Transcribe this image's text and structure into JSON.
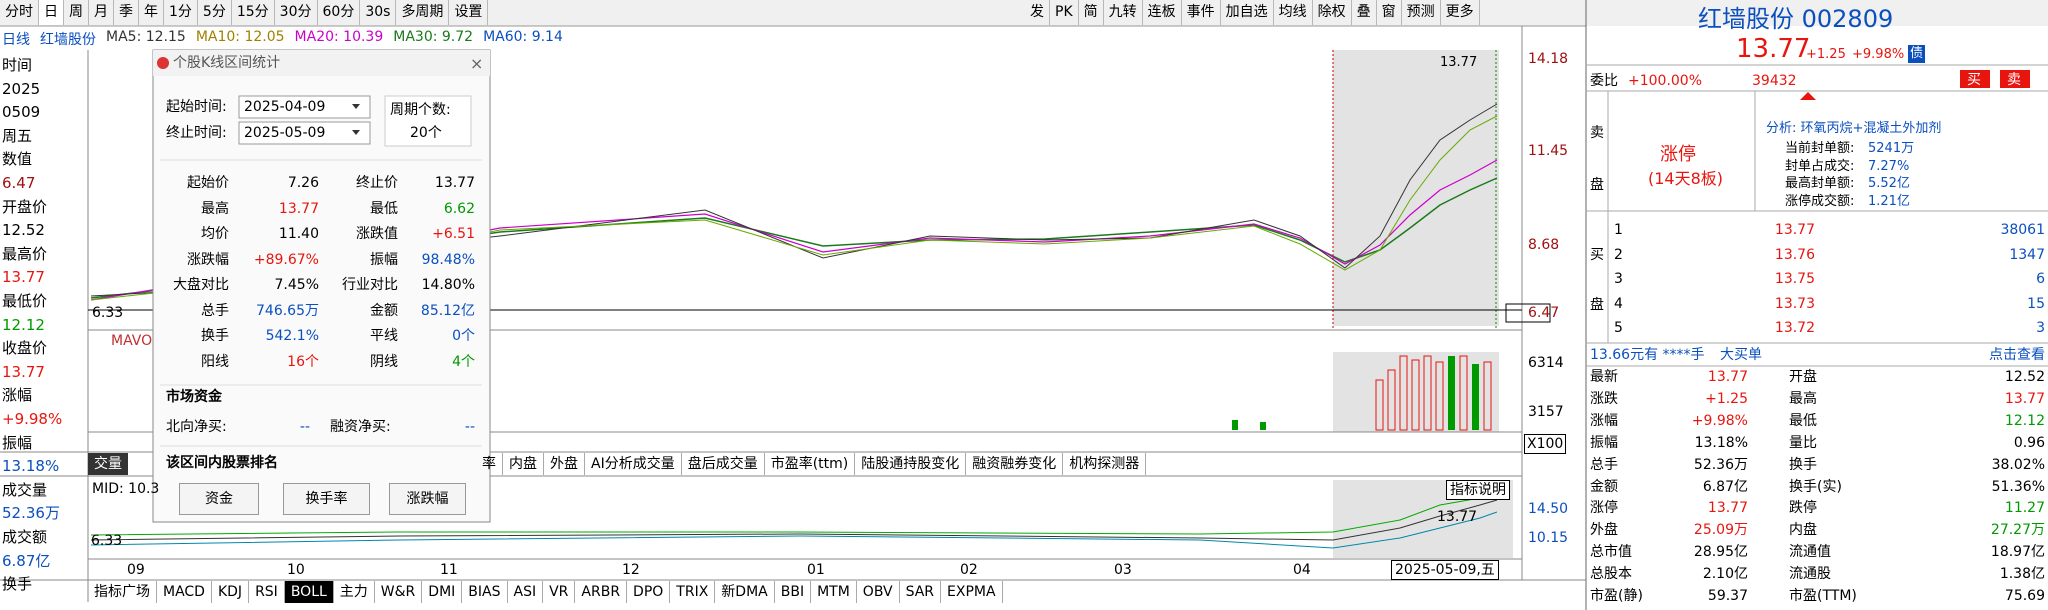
{
  "toolbar": {
    "left": [
      "分时",
      "日",
      "周",
      "月",
      "季",
      "年",
      "1分",
      "5分",
      "15分",
      "30分",
      "60分",
      "30s",
      "多周期",
      "设置"
    ],
    "right": [
      "发",
      "PK",
      "简",
      "九转",
      "连板",
      "事件",
      "加自选",
      "均线",
      "除权",
      "叠",
      "窗",
      "预测",
      "更多"
    ]
  },
  "indicator_line": [
    {
      "text": "日线",
      "color": "#0b4fbf"
    },
    {
      "text": "红墙股份",
      "color": "#0b4fbf"
    },
    {
      "text": "MA5: 12.15",
      "color": "#333333"
    },
    {
      "text": "MA10: 12.05",
      "color": "#a08000"
    },
    {
      "text": "MA20: 10.39",
      "color": "#cc00cc"
    },
    {
      "text": "MA30: 9.72",
      "color": "#1a7a1a"
    },
    {
      "text": "MA60: 9.14",
      "color": "#0b4fbf"
    }
  ],
  "left_info": [
    {
      "text": "时间",
      "color": "#000000"
    },
    {
      "text": "2025",
      "color": "#000000"
    },
    {
      "text": "0509",
      "color": "#000000"
    },
    {
      "text": "周五",
      "color": "#000000"
    },
    {
      "text": "数值",
      "color": "#000000"
    },
    {
      "text": "6.47",
      "color": "#a01010"
    },
    {
      "text": "开盘价",
      "color": "#000000"
    },
    {
      "text": "12.52",
      "color": "#000000"
    },
    {
      "text": "最高价",
      "color": "#000000"
    },
    {
      "text": "13.77",
      "color": "#e8150f"
    },
    {
      "text": "最低价",
      "color": "#000000"
    },
    {
      "text": "12.12",
      "color": "#009900"
    },
    {
      "text": "收盘价",
      "color": "#000000"
    },
    {
      "text": "13.77",
      "color": "#e8150f"
    },
    {
      "text": "涨幅",
      "color": "#000000"
    },
    {
      "text": "+9.98%",
      "color": "#e8150f"
    },
    {
      "text": "振幅",
      "color": "#000000"
    },
    {
      "text": "13.18%",
      "color": "#0b4fbf"
    },
    {
      "text": "成交量",
      "color": "#000000"
    },
    {
      "text": "52.36万",
      "color": "#0b4fbf"
    },
    {
      "text": "成交额",
      "color": "#000000"
    },
    {
      "text": "6.87亿",
      "color": "#0b4fbf"
    },
    {
      "text": "换手",
      "color": "#000000"
    }
  ],
  "price_axis": [
    "14.18",
    "11.45",
    "8.68",
    "6.47"
  ],
  "price_axis_left": "6.33",
  "chart_price_label": "13.77",
  "volume": {
    "label": "MAVO",
    "axis": [
      "6314",
      "3157"
    ],
    "unit": "X100"
  },
  "tabs": {
    "active": "交量",
    "items": [
      "率",
      "内盘",
      "外盘",
      "AI分析成交量",
      "盘后成交量",
      "市盈率(ttm)",
      "陆股通持股变化",
      "融资融券变化",
      "机构探测器"
    ]
  },
  "lower": {
    "label": "MID: 10.3",
    "axis": [
      "14.50",
      "10.15"
    ],
    "left": "6.33",
    "button": "指标说明",
    "price": "13.77"
  },
  "x_axis": [
    "09",
    "10",
    "11",
    "12",
    "01",
    "02",
    "03",
    "04"
  ],
  "cursor_date": "2025-05-09,五",
  "bottom_tabs": [
    "指标广场",
    "MACD",
    "KDJ",
    "RSI",
    "BOLL",
    "主力",
    "W&R",
    "DMI",
    "BIAS",
    "ASI",
    "VR",
    "ARBR",
    "DPO",
    "TRIX",
    "新DMA",
    "BBI",
    "MTM",
    "OBV",
    "SAR",
    "EXPMA"
  ],
  "popup": {
    "title": "个股K线区间统计",
    "start_label": "起始时间:",
    "start": "2025-04-09",
    "end_label": "终止时间:",
    "end": "2025-05-09",
    "count_label": "周期个数:",
    "count": "20个",
    "stats": [
      [
        "起始价",
        "7.26",
        "终止价",
        "13.77"
      ],
      [
        "最高",
        "13.77",
        "最低",
        "6.62"
      ],
      [
        "均价",
        "11.40",
        "涨跌值",
        "+6.51"
      ],
      [
        "涨跌幅",
        "+89.67%",
        "振幅",
        "98.48%"
      ],
      [
        "大盘对比",
        "7.45%",
        "行业对比",
        "14.80%"
      ],
      [
        "总手",
        "746.65万",
        "金额",
        "85.12亿"
      ],
      [
        "换手",
        "542.1%",
        "平线",
        "0个"
      ],
      [
        "阳线",
        "16个",
        "阴线",
        "4个"
      ]
    ],
    "stat_colors": [
      [
        "#000000",
        "#000000"
      ],
      [
        "#e8150f",
        "#009900"
      ],
      [
        "#000000",
        "#e8150f"
      ],
      [
        "#e8150f",
        "#0b4fbf"
      ],
      [
        "#000000",
        "#000000"
      ],
      [
        "#0b4fbf",
        "#0b4fbf"
      ],
      [
        "#0b4fbf",
        "#0b4fbf"
      ],
      [
        "#e8150f",
        "#009900"
      ]
    ],
    "fund_title": "市场资金",
    "north_label": "北向净买:",
    "north": "--",
    "margin_label": "融资净买:",
    "margin": "--",
    "rank_title": "该区间内股票排名",
    "buttons": [
      "资金",
      "换手率",
      "涨跌幅"
    ]
  },
  "quote": {
    "name": "红墙股份 002809",
    "price": "13.77",
    "change": "+1.25",
    "pct": "+9.98%",
    "bond": "债",
    "ratio_label": "委比",
    "ratio": "+100.00%",
    "ratio_vol": "39432",
    "buy": "买",
    "sell": "卖",
    "sell_side": [
      "卖",
      "盘"
    ],
    "limit": "涨停",
    "limit_note": "(14天8板)",
    "analysis": "分析: 环氧丙烷+混凝土外加剂",
    "seal": [
      [
        "当前封单额:",
        "5241万"
      ],
      [
        "封单占成交:",
        "7.27%"
      ],
      [
        "最高封单额:",
        "5.52亿"
      ],
      [
        "涨停成交额:",
        "1.21亿"
      ]
    ],
    "buy_side": [
      "买",
      "盘"
    ],
    "bids": [
      [
        "1",
        "13.77",
        "38061"
      ],
      [
        "2",
        "13.76",
        "1347"
      ],
      [
        "3",
        "13.75",
        "6"
      ],
      [
        "4",
        "13.73",
        "15"
      ],
      [
        "5",
        "13.72",
        "3"
      ]
    ],
    "big_order": "13.66元有 ****手",
    "big_label": "大买单",
    "big_link": "点击查看",
    "rows": [
      [
        "最新",
        "13.77",
        "开盘",
        "12.52"
      ],
      [
        "涨跌",
        "+1.25",
        "最高",
        "13.77"
      ],
      [
        "涨幅",
        "+9.98%",
        "最低",
        "12.12"
      ],
      [
        "振幅",
        "13.18%",
        "量比",
        "0.96"
      ],
      [
        "总手",
        "52.36万",
        "换手",
        "38.02%"
      ],
      [
        "金额",
        "6.87亿",
        "换手(实)",
        "51.36%"
      ],
      [
        "涨停",
        "13.77",
        "跌停",
        "11.27"
      ],
      [
        "外盘",
        "25.09万",
        "内盘",
        "27.27万"
      ],
      [
        "总市值",
        "28.95亿",
        "流通值",
        "18.97亿"
      ],
      [
        "总股本",
        "2.10亿",
        "流通股",
        "1.38亿"
      ],
      [
        "市盈(静)",
        "59.37",
        "市盈(TTM)",
        "75.69"
      ]
    ],
    "row_colors": [
      [
        "#e8150f",
        "#000000"
      ],
      [
        "#e8150f",
        "#e8150f"
      ],
      [
        "#e8150f",
        "#009900"
      ],
      [
        "#000000",
        "#000000"
      ],
      [
        "#000000",
        "#000000"
      ],
      [
        "#000000",
        "#000000"
      ],
      [
        "#e8150f",
        "#009900"
      ],
      [
        "#e8150f",
        "#009900"
      ],
      [
        "#000000",
        "#000000"
      ],
      [
        "#000000",
        "#000000"
      ],
      [
        "#000000",
        "#000000"
      ]
    ]
  }
}
